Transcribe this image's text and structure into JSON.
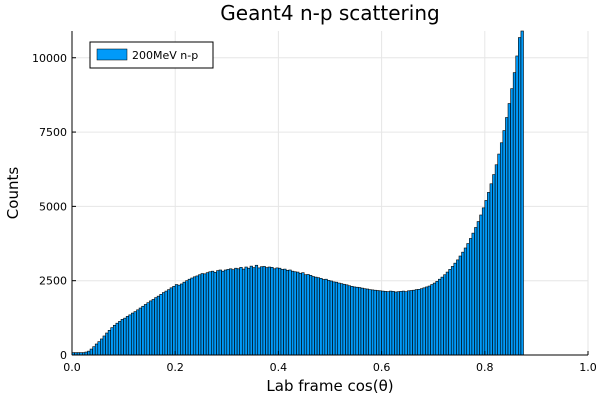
{
  "chart_data": {
    "type": "bar",
    "title": "Geant4 n-p scattering",
    "xlabel": "Lab frame cos(θ)",
    "ylabel": "Counts",
    "xlim": [
      0,
      1
    ],
    "ylim": [
      0,
      10900
    ],
    "xticks": [
      0.0,
      0.2,
      0.4,
      0.6,
      0.8,
      1.0
    ],
    "xtick_labels": [
      "0.0",
      "0.2",
      "0.4",
      "0.6",
      "0.8",
      "1.0"
    ],
    "yticks": [
      0,
      2500,
      5000,
      7500,
      10000
    ],
    "ytick_labels": [
      "0",
      "2500",
      "5000",
      "7500",
      "10000"
    ],
    "grid": true,
    "legend_position": "top-left",
    "bin_width": 0.005,
    "series": [
      {
        "name": "200MeV n-p",
        "color": "#009af9",
        "bin_start": 0.0,
        "values": [
          80,
          80,
          80,
          80,
          80,
          100,
          130,
          200,
          280,
          370,
          450,
          540,
          640,
          740,
          830,
          920,
          1000,
          1070,
          1130,
          1200,
          1240,
          1300,
          1350,
          1410,
          1460,
          1520,
          1580,
          1640,
          1700,
          1760,
          1820,
          1870,
          1930,
          1980,
          2040,
          2100,
          2150,
          2200,
          2260,
          2310,
          2370,
          2350,
          2390,
          2450,
          2500,
          2550,
          2590,
          2630,
          2660,
          2700,
          2740,
          2730,
          2770,
          2800,
          2820,
          2780,
          2840,
          2860,
          2820,
          2860,
          2880,
          2900,
          2870,
          2920,
          2900,
          2950,
          2890,
          2960,
          2920,
          2990,
          2940,
          3020,
          2930,
          2970,
          2980,
          2940,
          2960,
          2950,
          2900,
          2930,
          2920,
          2880,
          2890,
          2850,
          2860,
          2820,
          2800,
          2790,
          2750,
          2770,
          2700,
          2710,
          2680,
          2640,
          2620,
          2600,
          2580,
          2540,
          2550,
          2510,
          2490,
          2460,
          2450,
          2420,
          2400,
          2380,
          2360,
          2330,
          2310,
          2290,
          2280,
          2270,
          2250,
          2230,
          2220,
          2200,
          2190,
          2180,
          2170,
          2160,
          2150,
          2140,
          2130,
          2150,
          2140,
          2120,
          2130,
          2140,
          2150,
          2130,
          2160,
          2170,
          2180,
          2200,
          2210,
          2230,
          2260,
          2290,
          2320,
          2370,
          2420,
          2480,
          2550,
          2620,
          2700,
          2790,
          2880,
          2980,
          3090,
          3200,
          3330,
          3460,
          3600,
          3750,
          3920,
          4100,
          4290,
          4490,
          4710,
          4950,
          5200,
          5470,
          5760,
          6070,
          6400,
          6760,
          7140,
          7550,
          7990,
          8460,
          8960,
          9500,
          10060,
          10680,
          10900
        ],
        "draw_values": [
          [
            0.0,
            80
          ],
          [
            0.005,
            80
          ],
          [
            0.01,
            80
          ],
          [
            0.015,
            80
          ],
          [
            0.02,
            80
          ],
          [
            0.025,
            100
          ],
          [
            0.03,
            130
          ],
          [
            0.035,
            200
          ],
          [
            0.04,
            280
          ],
          [
            0.045,
            370
          ],
          [
            0.05,
            450
          ],
          [
            0.055,
            540
          ],
          [
            0.06,
            640
          ],
          [
            0.065,
            740
          ],
          [
            0.07,
            830
          ],
          [
            0.075,
            920
          ],
          [
            0.08,
            1000
          ],
          [
            0.085,
            1070
          ],
          [
            0.09,
            1130
          ],
          [
            0.095,
            1200
          ],
          [
            0.1,
            1240
          ],
          [
            0.105,
            1300
          ],
          [
            0.11,
            1350
          ],
          [
            0.115,
            1410
          ],
          [
            0.12,
            1460
          ],
          [
            0.125,
            1520
          ],
          [
            0.13,
            1580
          ],
          [
            0.135,
            1640
          ],
          [
            0.14,
            1700
          ],
          [
            0.145,
            1760
          ],
          [
            0.15,
            1820
          ],
          [
            0.155,
            1870
          ],
          [
            0.16,
            1930
          ],
          [
            0.165,
            1980
          ],
          [
            0.17,
            2040
          ],
          [
            0.175,
            2100
          ],
          [
            0.18,
            2150
          ],
          [
            0.185,
            2200
          ],
          [
            0.19,
            2260
          ],
          [
            0.195,
            2310
          ],
          [
            0.2,
            2370
          ],
          [
            0.205,
            2350
          ],
          [
            0.21,
            2390
          ],
          [
            0.215,
            2450
          ],
          [
            0.22,
            2500
          ],
          [
            0.225,
            2550
          ],
          [
            0.23,
            2590
          ],
          [
            0.235,
            2630
          ],
          [
            0.24,
            2660
          ],
          [
            0.245,
            2700
          ],
          [
            0.25,
            2740
          ],
          [
            0.255,
            2730
          ],
          [
            0.26,
            2770
          ],
          [
            0.265,
            2800
          ],
          [
            0.27,
            2820
          ],
          [
            0.275,
            2780
          ],
          [
            0.28,
            2840
          ],
          [
            0.285,
            2860
          ],
          [
            0.29,
            2820
          ],
          [
            0.295,
            2860
          ],
          [
            0.3,
            2880
          ],
          [
            0.305,
            2900
          ],
          [
            0.31,
            2870
          ],
          [
            0.315,
            2920
          ],
          [
            0.32,
            2900
          ],
          [
            0.325,
            2950
          ],
          [
            0.33,
            2890
          ],
          [
            0.335,
            2960
          ],
          [
            0.34,
            2920
          ],
          [
            0.345,
            2990
          ],
          [
            0.35,
            2940
          ],
          [
            0.355,
            3020
          ],
          [
            0.36,
            2930
          ],
          [
            0.365,
            2970
          ],
          [
            0.37,
            2980
          ],
          [
            0.375,
            2940
          ],
          [
            0.38,
            2960
          ],
          [
            0.385,
            2950
          ],
          [
            0.39,
            2900
          ],
          [
            0.395,
            2930
          ],
          [
            0.4,
            2920
          ],
          [
            0.405,
            2880
          ],
          [
            0.41,
            2890
          ],
          [
            0.415,
            2850
          ],
          [
            0.42,
            2860
          ],
          [
            0.425,
            2820
          ],
          [
            0.43,
            2800
          ],
          [
            0.435,
            2790
          ],
          [
            0.44,
            2750
          ],
          [
            0.445,
            2770
          ],
          [
            0.45,
            2700
          ],
          [
            0.455,
            2710
          ],
          [
            0.46,
            2680
          ],
          [
            0.465,
            2640
          ],
          [
            0.47,
            2620
          ],
          [
            0.475,
            2600
          ],
          [
            0.48,
            2580
          ],
          [
            0.485,
            2540
          ],
          [
            0.49,
            2550
          ],
          [
            0.495,
            2510
          ],
          [
            0.5,
            2490
          ],
          [
            0.505,
            2460
          ],
          [
            0.51,
            2450
          ],
          [
            0.515,
            2420
          ],
          [
            0.52,
            2400
          ],
          [
            0.525,
            2380
          ],
          [
            0.53,
            2360
          ],
          [
            0.535,
            2330
          ],
          [
            0.54,
            2310
          ],
          [
            0.545,
            2290
          ],
          [
            0.55,
            2280
          ],
          [
            0.555,
            2270
          ],
          [
            0.56,
            2250
          ],
          [
            0.565,
            2230
          ],
          [
            0.57,
            2220
          ],
          [
            0.575,
            2200
          ],
          [
            0.58,
            2190
          ],
          [
            0.585,
            2180
          ],
          [
            0.59,
            2170
          ],
          [
            0.595,
            2160
          ],
          [
            0.6,
            2150
          ],
          [
            0.605,
            2140
          ],
          [
            0.61,
            2130
          ],
          [
            0.615,
            2150
          ],
          [
            0.62,
            2140
          ],
          [
            0.625,
            2120
          ],
          [
            0.63,
            2130
          ],
          [
            0.635,
            2140
          ],
          [
            0.64,
            2150
          ],
          [
            0.645,
            2130
          ],
          [
            0.65,
            2160
          ],
          [
            0.655,
            2170
          ],
          [
            0.66,
            2180
          ],
          [
            0.665,
            2200
          ],
          [
            0.67,
            2210
          ],
          [
            0.675,
            2230
          ],
          [
            0.68,
            2260
          ],
          [
            0.685,
            2290
          ],
          [
            0.69,
            2320
          ],
          [
            0.695,
            2370
          ],
          [
            0.7,
            2420
          ],
          [
            0.705,
            2480
          ],
          [
            0.71,
            2550
          ],
          [
            0.715,
            2620
          ],
          [
            0.72,
            2700
          ],
          [
            0.725,
            2790
          ],
          [
            0.73,
            2880
          ],
          [
            0.735,
            2980
          ],
          [
            0.74,
            3090
          ],
          [
            0.745,
            3200
          ],
          [
            0.75,
            3330
          ],
          [
            0.755,
            3460
          ],
          [
            0.76,
            3600
          ],
          [
            0.765,
            3750
          ],
          [
            0.77,
            3920
          ],
          [
            0.775,
            4100
          ],
          [
            0.78,
            4290
          ],
          [
            0.785,
            4490
          ],
          [
            0.79,
            4710
          ],
          [
            0.795,
            4950
          ],
          [
            0.8,
            5200
          ],
          [
            0.805,
            5470
          ],
          [
            0.81,
            5760
          ],
          [
            0.815,
            6070
          ],
          [
            0.82,
            6400
          ],
          [
            0.825,
            6760
          ],
          [
            0.83,
            7140
          ],
          [
            0.835,
            7550
          ],
          [
            0.84,
            7990
          ],
          [
            0.845,
            8460
          ],
          [
            0.85,
            8960
          ],
          [
            0.855,
            9500
          ],
          [
            0.86,
            10060
          ],
          [
            0.865,
            10680
          ],
          [
            0.87,
            10900
          ]
        ]
      }
    ]
  }
}
